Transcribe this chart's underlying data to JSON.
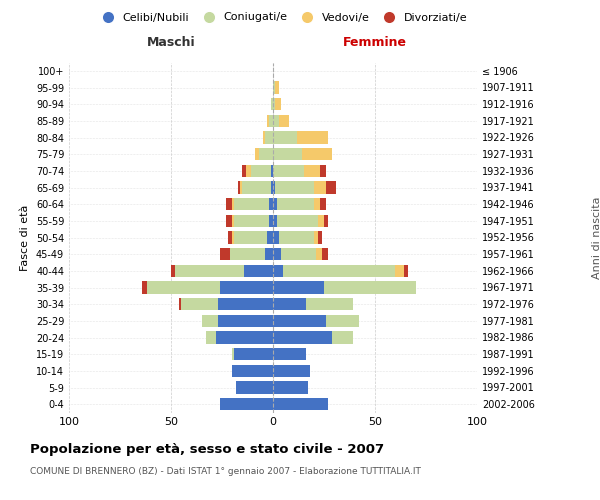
{
  "age_groups": [
    "0-4",
    "5-9",
    "10-14",
    "15-19",
    "20-24",
    "25-29",
    "30-34",
    "35-39",
    "40-44",
    "45-49",
    "50-54",
    "55-59",
    "60-64",
    "65-69",
    "70-74",
    "75-79",
    "80-84",
    "85-89",
    "90-94",
    "95-99",
    "100+"
  ],
  "birth_years": [
    "2002-2006",
    "1997-2001",
    "1992-1996",
    "1987-1991",
    "1982-1986",
    "1977-1981",
    "1972-1976",
    "1967-1971",
    "1962-1966",
    "1957-1961",
    "1952-1956",
    "1947-1951",
    "1942-1946",
    "1937-1941",
    "1932-1936",
    "1927-1931",
    "1922-1926",
    "1917-1921",
    "1912-1916",
    "1907-1911",
    "≤ 1906"
  ],
  "male": {
    "celibi": [
      26,
      18,
      20,
      19,
      28,
      27,
      27,
      26,
      14,
      4,
      3,
      2,
      2,
      1,
      1,
      0,
      0,
      0,
      0,
      0,
      0
    ],
    "coniugati": [
      0,
      0,
      0,
      1,
      5,
      8,
      18,
      36,
      34,
      17,
      16,
      17,
      17,
      14,
      10,
      7,
      4,
      2,
      1,
      0,
      0
    ],
    "vedovi": [
      0,
      0,
      0,
      0,
      0,
      0,
      0,
      0,
      0,
      0,
      1,
      1,
      1,
      1,
      2,
      2,
      1,
      1,
      0,
      0,
      0
    ],
    "divorziati": [
      0,
      0,
      0,
      0,
      0,
      0,
      1,
      2,
      2,
      5,
      2,
      3,
      3,
      1,
      2,
      0,
      0,
      0,
      0,
      0,
      0
    ]
  },
  "female": {
    "nubili": [
      27,
      17,
      18,
      16,
      29,
      26,
      16,
      25,
      5,
      4,
      3,
      2,
      2,
      1,
      0,
      0,
      0,
      0,
      0,
      0,
      0
    ],
    "coniugate": [
      0,
      0,
      0,
      0,
      10,
      16,
      23,
      45,
      55,
      17,
      17,
      20,
      18,
      19,
      15,
      14,
      12,
      3,
      1,
      1,
      0
    ],
    "vedove": [
      0,
      0,
      0,
      0,
      0,
      0,
      0,
      0,
      4,
      3,
      2,
      3,
      3,
      6,
      8,
      15,
      15,
      5,
      3,
      2,
      0
    ],
    "divorziate": [
      0,
      0,
      0,
      0,
      0,
      0,
      0,
      0,
      2,
      3,
      2,
      2,
      3,
      5,
      3,
      0,
      0,
      0,
      0,
      0,
      0
    ]
  },
  "colors": {
    "celibi": "#4472c4",
    "coniugati": "#c5d9a0",
    "vedovi": "#f5c96a",
    "divorziati": "#c0392b"
  },
  "xlim": 100,
  "title": "Popolazione per età, sesso e stato civile - 2007",
  "subtitle": "COMUNE DI BRENNERO (BZ) - Dati ISTAT 1° gennaio 2007 - Elaborazione TUTTITALIA.IT",
  "xlabel_left": "Maschi",
  "xlabel_right": "Femmine",
  "ylabel": "Fasce di età",
  "ylabel_right": "Anni di nascita",
  "legend_labels": [
    "Celibi/Nubili",
    "Coniugati/e",
    "Vedovi/e",
    "Divorziati/e"
  ],
  "background_color": "#ffffff",
  "bar_height": 0.75
}
